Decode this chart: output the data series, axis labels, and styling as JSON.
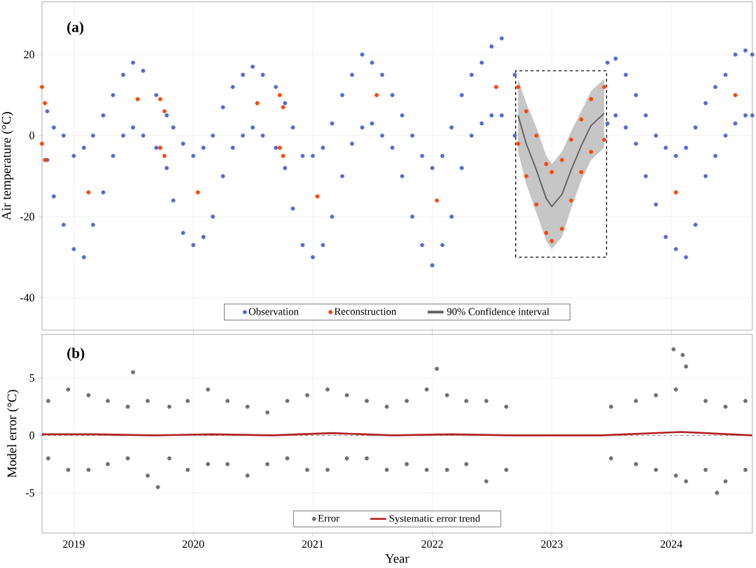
{
  "chart_data": [
    {
      "type": "scatter",
      "annotations": [
        "(a)"
      ],
      "ylabel": "Air temperature (°C)",
      "xlim": [
        "2018-09-26",
        "2024-09-05"
      ],
      "xticks": [
        "2019",
        "2020",
        "2021",
        "2022",
        "2023",
        "2024"
      ],
      "ylim": [
        -48,
        33
      ],
      "yticks": [
        -40,
        -20,
        0,
        20
      ],
      "tick_labels": "y",
      "grid": true,
      "legend": "bottom",
      "series": [
        {
          "name": "Observation",
          "color": "#4f6bd8",
          "x": [
            "2018-10-12",
            "2018-10-12",
            "2018-11-01",
            "2018-11-01",
            "2018-12-01",
            "2018-12-01",
            "2019-01-01",
            "2019-01-01",
            "2019-02-01",
            "2019-02-01",
            "2019-03-01",
            "2019-03-01",
            "2019-04-01",
            "2019-04-01",
            "2019-05-01",
            "2019-05-01",
            "2019-06-01",
            "2019-06-01",
            "2019-07-01",
            "2019-07-01",
            "2019-08-01",
            "2019-08-01",
            "2019-09-10",
            "2019-09-10",
            "2019-10-12",
            "2019-10-12",
            "2019-11-01",
            "2019-11-01",
            "2019-12-01",
            "2019-12-01",
            "2020-01-01",
            "2020-01-01",
            "2020-02-01",
            "2020-02-01",
            "2020-03-01",
            "2020-03-01",
            "2020-04-01",
            "2020-04-01",
            "2020-05-01",
            "2020-05-01",
            "2020-06-01",
            "2020-06-01",
            "2020-07-01",
            "2020-07-01",
            "2020-08-01",
            "2020-08-01",
            "2020-09-10",
            "2020-09-10",
            "2020-10-08",
            "2020-10-08",
            "2020-11-01",
            "2020-11-01",
            "2020-12-01",
            "2020-12-01",
            "2021-01-01",
            "2021-01-01",
            "2021-02-01",
            "2021-02-01",
            "2021-03-01",
            "2021-03-01",
            "2021-04-01",
            "2021-04-01",
            "2021-05-01",
            "2021-05-01",
            "2021-06-01",
            "2021-06-01",
            "2021-07-01",
            "2021-07-01",
            "2021-08-01",
            "2021-08-01",
            "2021-09-01",
            "2021-09-01",
            "2021-10-01",
            "2021-10-01",
            "2021-11-01",
            "2021-11-01",
            "2021-12-01",
            "2021-12-01",
            "2022-01-01",
            "2022-01-01",
            "2022-02-01",
            "2022-02-01",
            "2022-03-01",
            "2022-03-01",
            "2022-04-01",
            "2022-04-01",
            "2022-05-01",
            "2022-05-01",
            "2022-06-01",
            "2022-06-01",
            "2022-07-01",
            "2022-07-01",
            "2022-08-01",
            "2022-08-01",
            "2022-09-10",
            "2022-09-10",
            "2023-06-20",
            "2023-06-20",
            "2023-07-15",
            "2023-07-15",
            "2023-08-15",
            "2023-08-15",
            "2023-09-15",
            "2023-09-15",
            "2023-10-15",
            "2023-10-15",
            "2023-11-15",
            "2023-11-15",
            "2023-12-15",
            "2023-12-15",
            "2024-01-15",
            "2024-01-15",
            "2024-02-15",
            "2024-02-15",
            "2024-03-15",
            "2024-03-15",
            "2024-04-15",
            "2024-04-15",
            "2024-05-15",
            "2024-05-15",
            "2024-06-15",
            "2024-06-15",
            "2024-07-15",
            "2024-07-15",
            "2024-08-15",
            "2024-08-15",
            "2024-09-05",
            "2024-09-05"
          ],
          "values": [
            6,
            -6,
            2,
            -15,
            0,
            -22,
            -5,
            -28,
            -3,
            -30,
            0,
            -22,
            5,
            -14,
            10,
            -5,
            15,
            0,
            18,
            2,
            16,
            0,
            10,
            -3,
            5,
            -8,
            2,
            -16,
            -2,
            -24,
            -5,
            -27,
            -3,
            -25,
            0,
            -20,
            7,
            -10,
            12,
            -3,
            15,
            0,
            17,
            2,
            15,
            0,
            12,
            -3,
            8,
            -8,
            2,
            -18,
            -5,
            -27,
            -5,
            -30,
            -3,
            -27,
            3,
            -20,
            10,
            -10,
            15,
            -2,
            20,
            2,
            18,
            3,
            15,
            0,
            10,
            -3,
            5,
            -10,
            0,
            -20,
            -5,
            -27,
            -8,
            -32,
            -5,
            -27,
            2,
            -20,
            10,
            -8,
            15,
            0,
            18,
            3,
            22,
            5,
            24,
            5,
            15,
            0,
            18,
            3,
            19,
            5,
            15,
            2,
            10,
            -2,
            5,
            -10,
            0,
            -17,
            -3,
            -25,
            -5,
            -28,
            -3,
            -30,
            2,
            -22,
            8,
            -10,
            12,
            -5,
            15,
            0,
            20,
            3,
            21,
            5,
            20,
            5
          ]
        },
        {
          "name": "Reconstruction",
          "color": "#ff4500",
          "x": [
            "2018-09-26",
            "2018-09-26",
            "2018-10-05",
            "2018-10-05",
            "2019-02-15",
            "2019-07-15",
            "2019-09-22",
            "2019-09-22",
            "2019-10-05",
            "2019-10-05",
            "2020-01-15",
            "2020-07-15",
            "2020-09-22",
            "2020-09-22",
            "2020-10-02",
            "2020-10-02",
            "2021-01-15",
            "2021-07-15",
            "2022-01-15",
            "2022-07-15",
            "2022-09-20",
            "2022-09-20",
            "2022-10-15",
            "2022-10-15",
            "2022-11-15",
            "2022-11-15",
            "2022-12-15",
            "2022-12-15",
            "2023-01-01",
            "2023-01-01",
            "2023-02-01",
            "2023-02-01",
            "2023-03-01",
            "2023-03-01",
            "2023-04-01",
            "2023-04-01",
            "2023-05-01",
            "2023-05-01",
            "2023-06-10",
            "2023-06-10",
            "2024-01-15",
            "2024-07-15"
          ],
          "values": [
            12,
            -2,
            8,
            -6,
            -14,
            9,
            9,
            -3,
            6,
            -5,
            -14,
            8,
            10,
            -3,
            7,
            -5,
            -15,
            10,
            -16,
            12,
            12,
            -2,
            6,
            -10,
            0,
            -17,
            -7,
            -24,
            -9,
            -26,
            -6,
            -23,
            -1,
            -16,
            4,
            -9,
            9,
            -4,
            12,
            -1,
            -14,
            10
          ]
        },
        {
          "name": "90% Confidence interval",
          "type": "line",
          "marker": "none",
          "color": "#666666",
          "x": [
            "2022-09-20",
            "2022-10-15",
            "2022-11-15",
            "2022-12-15",
            "2023-01-01",
            "2023-02-01",
            "2023-03-01",
            "2023-04-01",
            "2023-05-01",
            "2023-06-10"
          ],
          "values": [
            5,
            -2,
            -8.5,
            -15.5,
            -17.5,
            -14.5,
            -8.5,
            -2.5,
            2.5,
            5.5
          ],
          "lower": [
            -4,
            -12,
            -19,
            -26,
            -28,
            -25,
            -18,
            -11,
            -6,
            -3
          ],
          "upper": [
            14,
            8,
            2,
            -5,
            -7,
            -4,
            1,
            6,
            11,
            14
          ]
        }
      ]
    },
    {
      "type": "scatter",
      "annotations": [
        "(b)"
      ],
      "xlabel": "Year",
      "ylabel": "Model error (°C)",
      "xlim": [
        "2018-09-26",
        "2024-09-05"
      ],
      "xticks": [
        "2019",
        "2020",
        "2021",
        "2022",
        "2023",
        "2024"
      ],
      "ylim": [
        -8.5,
        8.8
      ],
      "yticks": [
        -5,
        0,
        5
      ],
      "grid": true,
      "legend": "bottom",
      "ref_lines": [
        {
          "axis": "y",
          "value": 0,
          "line_style": "dashed",
          "color": "#333333"
        }
      ],
      "series": [
        {
          "name": "Error",
          "color": "#707070",
          "x": [
            "2018-10-15",
            "2018-10-15",
            "2018-12-15",
            "2018-12-15",
            "2019-02-15",
            "2019-02-15",
            "2019-04-15",
            "2019-04-15",
            "2019-06-15",
            "2019-06-15",
            "2019-07-01",
            "2019-08-15",
            "2019-08-15",
            "2019-09-15",
            "2019-10-20",
            "2019-10-20",
            "2019-12-15",
            "2019-12-15",
            "2020-02-15",
            "2020-02-15",
            "2020-04-15",
            "2020-04-15",
            "2020-06-15",
            "2020-06-15",
            "2020-08-15",
            "2020-08-15",
            "2020-10-15",
            "2020-10-15",
            "2020-12-15",
            "2020-12-15",
            "2021-02-15",
            "2021-02-15",
            "2021-04-15",
            "2021-04-15",
            "2021-06-15",
            "2021-06-15",
            "2021-08-15",
            "2021-08-15",
            "2021-10-15",
            "2021-10-15",
            "2021-12-15",
            "2021-12-15",
            "2022-01-15",
            "2022-02-15",
            "2022-02-15",
            "2022-04-15",
            "2022-04-15",
            "2022-06-15",
            "2022-06-15",
            "2022-08-15",
            "2022-08-15",
            "2023-07-01",
            "2023-07-01",
            "2023-09-15",
            "2023-09-15",
            "2023-11-15",
            "2023-11-15",
            "2024-01-08",
            "2024-01-15",
            "2024-01-15",
            "2024-02-05",
            "2024-02-15",
            "2024-02-15",
            "2024-04-15",
            "2024-04-15",
            "2024-05-20",
            "2024-06-15",
            "2024-06-15",
            "2024-08-15",
            "2024-08-15"
          ],
          "values": [
            3,
            -2,
            4,
            -3,
            3.5,
            -3,
            3,
            -2.5,
            2.5,
            -2,
            5.5,
            3,
            -3.5,
            -4.5,
            2.5,
            -2,
            3,
            -3,
            4,
            -2.5,
            3,
            -2.5,
            2.5,
            -3.5,
            2,
            -2.5,
            3,
            -2,
            3.5,
            -3,
            4,
            -3,
            3.5,
            -2,
            3,
            -2,
            2.5,
            -3,
            3,
            -2.5,
            4,
            -3,
            5.8,
            3.5,
            -3,
            3,
            -2.5,
            3,
            -4,
            2.5,
            -3,
            2.5,
            -2,
            3,
            -2.5,
            3.5,
            -3,
            7.5,
            4,
            -3.5,
            7,
            6,
            -4,
            3,
            -3,
            -5,
            2.5,
            -4,
            3,
            -3
          ]
        },
        {
          "name": "Systematic error trend",
          "type": "line",
          "color": "#b22222",
          "marker": "none",
          "x": [
            "2018-09-26",
            "2019-03-01",
            "2019-09-01",
            "2020-03-01",
            "2020-09-01",
            "2021-03-01",
            "2021-09-01",
            "2022-03-01",
            "2022-09-01",
            "2023-06-01",
            "2024-02-01",
            "2024-09-05"
          ],
          "values": [
            0.1,
            0.1,
            0,
            0.1,
            0,
            0.2,
            0,
            0.1,
            0,
            0,
            0.3,
            0
          ]
        }
      ]
    }
  ]
}
